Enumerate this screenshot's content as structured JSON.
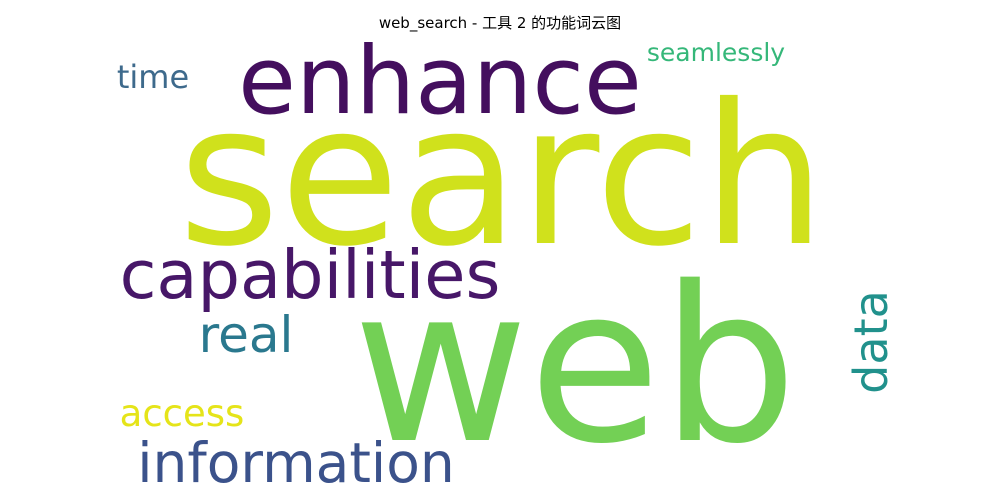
{
  "title": "web_search - 工具 2 的功能词云图",
  "words": [
    {
      "id": "search",
      "text": "search",
      "color": "#d0e11c"
    },
    {
      "id": "web",
      "text": "web",
      "color": "#73d055"
    },
    {
      "id": "enhance",
      "text": "enhance",
      "color": "#440f5e"
    },
    {
      "id": "capabilities",
      "text": "capabilities",
      "color": "#471768"
    },
    {
      "id": "information",
      "text": "information",
      "color": "#3b528b"
    },
    {
      "id": "real",
      "text": "real",
      "color": "#2a788e"
    },
    {
      "id": "data",
      "text": "data",
      "color": "#21918c"
    },
    {
      "id": "access",
      "text": "access",
      "color": "#e5e419"
    },
    {
      "id": "time",
      "text": "time",
      "color": "#3e6a8c"
    },
    {
      "id": "seamlessly",
      "text": "seamlessly",
      "color": "#35b779"
    }
  ]
}
